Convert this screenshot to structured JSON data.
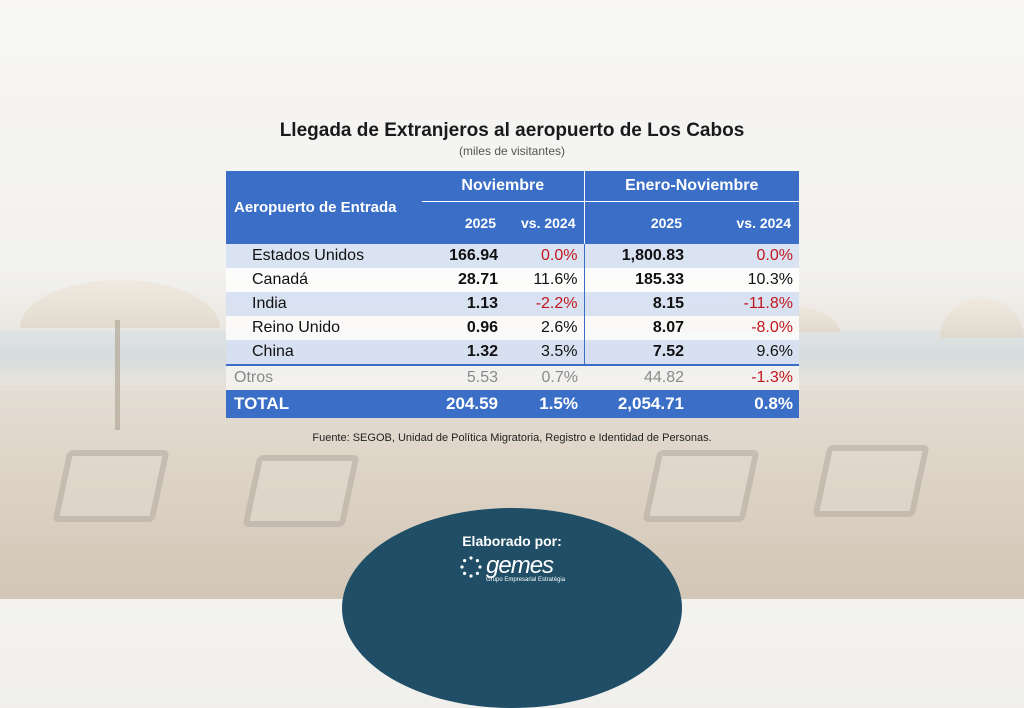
{
  "title": "Llegada de Extranjeros al aeropuerto de Los Cabos",
  "subtitle": "(miles de visitantes)",
  "table": {
    "entry_header": "Aeropuerto de Entrada",
    "group_month": "Noviembre",
    "group_ytd": "Enero-Noviembre",
    "col_2025_a": "2025",
    "col_vs_a": "vs. 2024",
    "col_2025_b": "2025",
    "col_vs_b": "vs. 2024",
    "rows": [
      {
        "name": "Estados Unidos",
        "m": "166.94",
        "mv": "0.0%",
        "y": "1,800.83",
        "yv": "0.0%"
      },
      {
        "name": "Canadá",
        "m": "28.71",
        "mv": "11.6%",
        "y": "185.33",
        "yv": "10.3%"
      },
      {
        "name": "India",
        "m": "1.13",
        "mv": "-2.2%",
        "y": "8.15",
        "yv": "-11.8%"
      },
      {
        "name": "Reino Unido",
        "m": "0.96",
        "mv": "2.6%",
        "y": "8.07",
        "yv": "-8.0%"
      },
      {
        "name": "China",
        "m": "1.32",
        "mv": "3.5%",
        "y": "7.52",
        "yv": "9.6%"
      },
      {
        "name": "Otros",
        "m": "5.53",
        "mv": "0.7%",
        "y": "44.82",
        "yv": "-1.3%"
      }
    ],
    "total": {
      "name": "TOTAL",
      "m": "204.59",
      "mv": "1.5%",
      "y": "2,054.71",
      "yv": "0.8%"
    }
  },
  "source": "Fuente: SEGOB, Unidad de Política Migratoria, Registro e Identidad de Personas.",
  "badge": {
    "label": "Elaborado por:",
    "logo_word": "gemes",
    "logo_tag": "Grupo Empresarial Estratégia"
  },
  "colors": {
    "header_blue": "#3b6fc7",
    "negative_red": "#c0171d",
    "badge_teal": "#1f4e66"
  }
}
